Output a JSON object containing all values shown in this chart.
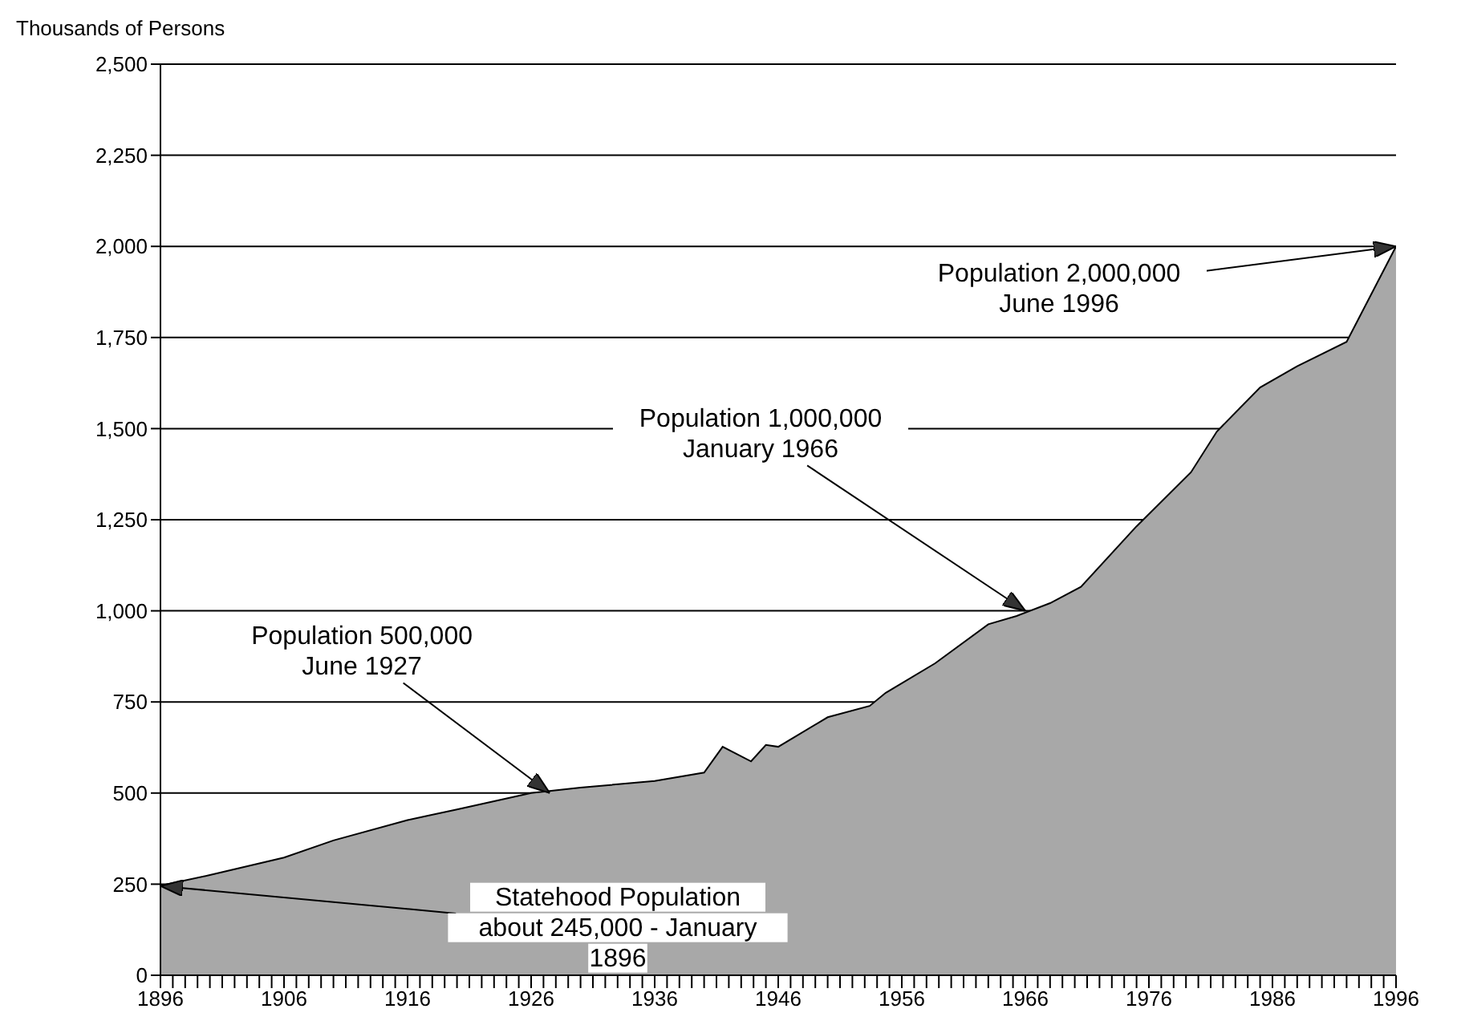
{
  "chart_data": {
    "type": "area",
    "ylabel": "Thousands of Persons",
    "color": "#a8a8a8",
    "x": [
      1896,
      1900,
      1906,
      1910,
      1916,
      1920,
      1926,
      1930,
      1936,
      1940,
      1941.5,
      1943.8,
      1945,
      1946,
      1950,
      1953.4,
      1954.7,
      1958.7,
      1963,
      1965.3,
      1968,
      1970.5,
      1975,
      1979.4,
      1981.5,
      1985,
      1988,
      1992,
      1996
    ],
    "values": [
      246,
      275,
      323,
      370,
      426,
      455,
      500,
      515,
      533,
      556,
      627,
      587,
      632,
      627,
      708,
      739,
      775,
      856,
      963,
      986,
      1021,
      1066,
      1232,
      1380,
      1492,
      1613,
      1671,
      1738,
      2000
    ],
    "xlim": [
      1896,
      1996
    ],
    "xticks": [
      1896,
      {
        "value": 1897,
        "label": null
      },
      {
        "value": 1898,
        "label": null
      },
      {
        "value": 1899,
        "label": null
      },
      {
        "value": 1900,
        "label": null
      },
      {
        "value": 1901,
        "label": null
      },
      {
        "value": 1902,
        "label": null
      },
      {
        "value": 1903,
        "label": null
      },
      {
        "value": 1904,
        "label": null
      },
      {
        "value": 1905,
        "label": null
      },
      1906,
      {
        "value": 1907,
        "label": null
      },
      {
        "value": 1908,
        "label": null
      },
      {
        "value": 1909,
        "label": null
      },
      {
        "value": 1910,
        "label": null
      },
      {
        "value": 1911,
        "label": null
      },
      {
        "value": 1912,
        "label": null
      },
      {
        "value": 1913,
        "label": null
      },
      {
        "value": 1914,
        "label": null
      },
      {
        "value": 1915,
        "label": null
      },
      1916,
      {
        "value": 1917,
        "label": null
      },
      {
        "value": 1918,
        "label": null
      },
      {
        "value": 1919,
        "label": null
      },
      {
        "value": 1920,
        "label": null
      },
      {
        "value": 1921,
        "label": null
      },
      {
        "value": 1922,
        "label": null
      },
      {
        "value": 1923,
        "label": null
      },
      {
        "value": 1924,
        "label": null
      },
      {
        "value": 1925,
        "label": null
      },
      1926,
      {
        "value": 1927,
        "label": null
      },
      {
        "value": 1928,
        "label": null
      },
      {
        "value": 1929,
        "label": null
      },
      {
        "value": 1930,
        "label": null
      },
      {
        "value": 1931,
        "label": null
      },
      {
        "value": 1932,
        "label": null
      },
      {
        "value": 1933,
        "label": null
      },
      {
        "value": 1934,
        "label": null
      },
      {
        "value": 1935,
        "label": null
      },
      1936,
      {
        "value": 1937,
        "label": null
      },
      {
        "value": 1938,
        "label": null
      },
      {
        "value": 1939,
        "label": null
      },
      {
        "value": 1940,
        "label": null
      },
      {
        "value": 1941,
        "label": null
      },
      {
        "value": 1942,
        "label": null
      },
      {
        "value": 1943,
        "label": null
      },
      {
        "value": 1944,
        "label": null
      },
      {
        "value": 1945,
        "label": null
      },
      1946,
      {
        "value": 1947,
        "label": null
      },
      {
        "value": 1948,
        "label": null
      },
      {
        "value": 1949,
        "label": null
      },
      {
        "value": 1950,
        "label": null
      },
      {
        "value": 1951,
        "label": null
      },
      {
        "value": 1952,
        "label": null
      },
      {
        "value": 1953,
        "label": null
      },
      {
        "value": 1954,
        "label": null
      },
      {
        "value": 1955,
        "label": null
      },
      1956,
      {
        "value": 1957,
        "label": null
      },
      {
        "value": 1958,
        "label": null
      },
      {
        "value": 1959,
        "label": null
      },
      {
        "value": 1960,
        "label": null
      },
      {
        "value": 1961,
        "label": null
      },
      {
        "value": 1962,
        "label": null
      },
      {
        "value": 1963,
        "label": null
      },
      {
        "value": 1964,
        "label": null
      },
      {
        "value": 1965,
        "label": null
      },
      1966,
      {
        "value": 1967,
        "label": null
      },
      {
        "value": 1968,
        "label": null
      },
      {
        "value": 1969,
        "label": null
      },
      {
        "value": 1970,
        "label": null
      },
      {
        "value": 1971,
        "label": null
      },
      {
        "value": 1972,
        "label": null
      },
      {
        "value": 1973,
        "label": null
      },
      {
        "value": 1974,
        "label": null
      },
      {
        "value": 1975,
        "label": null
      },
      1976,
      {
        "value": 1977,
        "label": null
      },
      {
        "value": 1978,
        "label": null
      },
      {
        "value": 1979,
        "label": null
      },
      {
        "value": 1980,
        "label": null
      },
      {
        "value": 1981,
        "label": null
      },
      {
        "value": 1982,
        "label": null
      },
      {
        "value": 1983,
        "label": null
      },
      {
        "value": 1984,
        "label": null
      },
      {
        "value": 1985,
        "label": null
      },
      1986,
      {
        "value": 1987,
        "label": null
      },
      {
        "value": 1988,
        "label": null
      },
      {
        "value": 1989,
        "label": null
      },
      {
        "value": 1990,
        "label": null
      },
      {
        "value": 1991,
        "label": null
      },
      {
        "value": 1992,
        "label": null
      },
      {
        "value": 1993,
        "label": null
      },
      {
        "value": 1994,
        "label": null
      },
      {
        "value": 1995,
        "label": null
      },
      1996
    ],
    "ylim": [
      0,
      2500
    ],
    "yticks": [
      0,
      {
        "value": 250,
        "label": "250"
      },
      {
        "value": 500,
        "label": "500"
      },
      {
        "value": 750,
        "label": "750"
      },
      {
        "value": 1000,
        "label": "1,000"
      },
      {
        "value": 1250,
        "label": "1,250"
      },
      {
        "value": 1500,
        "label": "1,500"
      },
      {
        "value": 1750,
        "label": "1,750"
      },
      {
        "value": 2000,
        "label": "2,000"
      },
      {
        "value": 2250,
        "label": "2,250"
      },
      {
        "value": 2500,
        "label": "2,500"
      }
    ],
    "grid": "y",
    "annotations": [
      {
        "text": "Population 500,000\nJune 1927",
        "x": 1927.5,
        "y": 500
      },
      {
        "text": "Population 1,000,000\nJanuary 1966",
        "x": 1966,
        "y": 1000
      },
      {
        "text": "Population 2,000,000\nJune 1996",
        "x": 1996,
        "y": 2000
      },
      {
        "text": "Statehood Population\nabout 245,000 - January\n1896",
        "x": 1896,
        "y": 245
      }
    ]
  }
}
